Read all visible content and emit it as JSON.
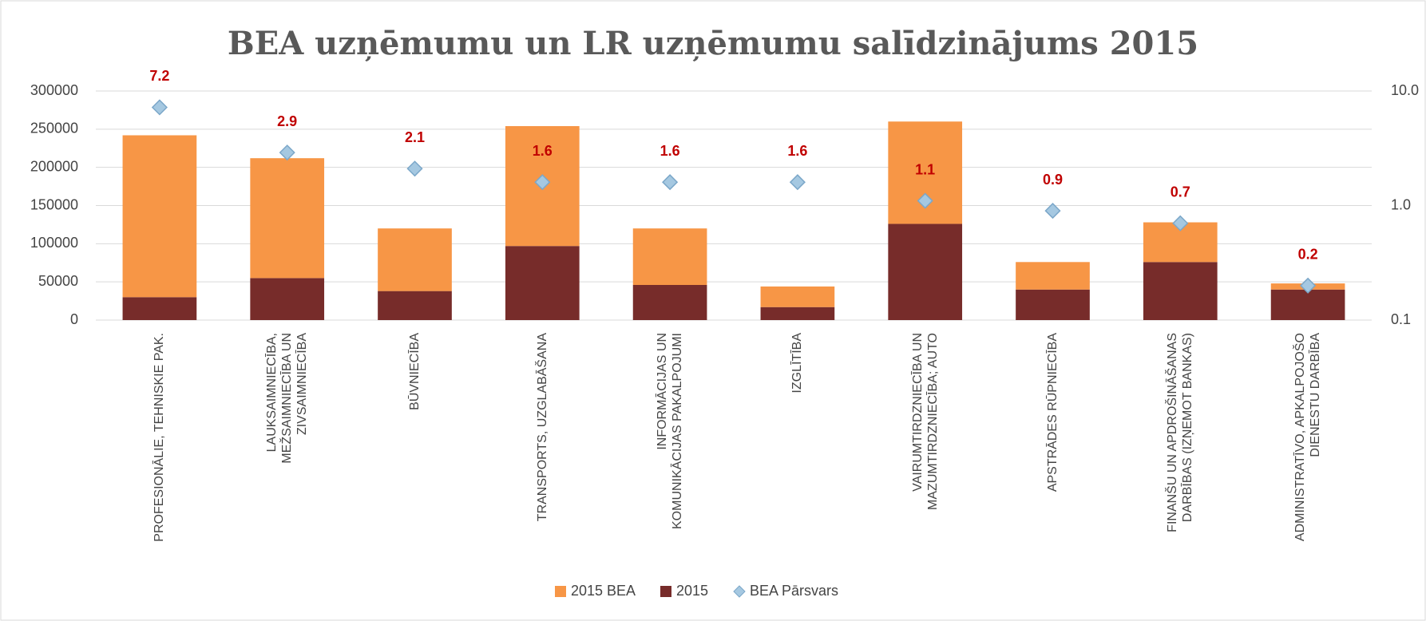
{
  "chart_data": {
    "type": "bar",
    "stacked": true,
    "title": "BEA uzņēmumu un LR uzņēmumu salīdzinājums 2015",
    "categories": [
      "PROFESIONĀLIE, TEHNISKIE PAK.",
      "LAUKSAIMNIECĪBA, MEŽSAIMNIECĪBA UN ZIVSAIMNIECĪBA",
      "BŪVNIECĪBA",
      "TRANSPORTS, UZGLABĀŠANA",
      "INFORMĀCIJAS UN KOMUNIKĀCIJAS PAKALPOJUMI",
      "IZGLĪTĪBA",
      "VAIRUMTIRDZNIECĪBA UN MAZUMTIRDZNIECĪBA; AUTO",
      "APSTRĀDES RŪPNIECĪBA",
      "FINANŠU UN APDROŠINĀŠANAS DARBĪBAS (IZŅEMOT BANKAS)",
      "ADMINISTRATĪVO, APKALPOJOŠO DIENESTU DARBĪBA"
    ],
    "series": [
      {
        "name": "2015 BEA",
        "color": "#f79646",
        "values": [
          212000,
          157000,
          82000,
          157000,
          74000,
          27000,
          134000,
          36000,
          52000,
          8000
        ]
      },
      {
        "name": "2015",
        "color": "#772c2a",
        "values": [
          30000,
          55000,
          38000,
          97000,
          46000,
          17000,
          126000,
          40000,
          76000,
          40000
        ]
      },
      {
        "name": "BEA Pārsvars",
        "type": "scatter",
        "axis": "y2",
        "color": "#a5c8e1",
        "values": [
          7.2,
          2.9,
          2.1,
          1.6,
          1.6,
          1.6,
          1.1,
          0.9,
          0.7,
          0.2
        ]
      }
    ],
    "ylim": [
      0,
      300000
    ],
    "yticks": [
      0,
      50000,
      100000,
      150000,
      200000,
      250000,
      300000
    ],
    "y2lim": [
      0.1,
      10
    ],
    "y2scale": "log",
    "y2ticks": [
      0.1,
      {
        "value": 1,
        "label": "1.0"
      },
      {
        "value": 10,
        "label": "10.0"
      }
    ],
    "grid": true,
    "legend": "bottom",
    "value_label_color": "#c00000"
  }
}
